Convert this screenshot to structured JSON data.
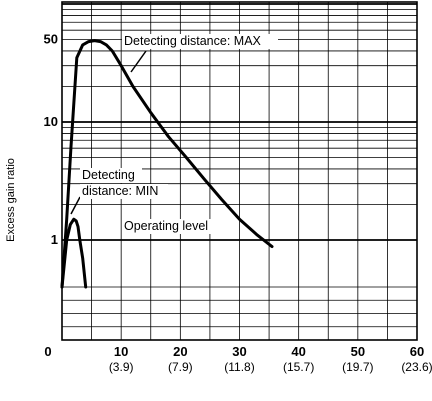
{
  "chart_data": {
    "type": "line",
    "title": "",
    "xlabel": "",
    "ylabel": "Excess gain ratio",
    "x_ticks": [
      {
        "value": 0,
        "label": "0",
        "sub": ""
      },
      {
        "value": 10,
        "label": "10",
        "sub": "(3.9)"
      },
      {
        "value": 20,
        "label": "20",
        "sub": "(7.9)"
      },
      {
        "value": 30,
        "label": "30",
        "sub": "(11.8)"
      },
      {
        "value": 40,
        "label": "40",
        "sub": "(15.7)"
      },
      {
        "value": 50,
        "label": "50",
        "sub": "(19.7)"
      },
      {
        "value": 60,
        "label": "60",
        "sub": "(23.6)"
      }
    ],
    "y_ticks": [
      {
        "value": 1,
        "label": "1"
      },
      {
        "value": 10,
        "label": "10"
      },
      {
        "value": 50,
        "label": "50"
      }
    ],
    "y_bottom_label": "0",
    "xlim": [
      0,
      60
    ],
    "ylim": [
      0.5,
      100
    ],
    "y_scale": "log",
    "grid": true,
    "series": [
      {
        "name": "Detecting distance: MAX",
        "x": [
          0,
          0.8,
          1.5,
          2.5,
          3.5,
          4.5,
          5.5,
          6.5,
          7.5,
          8.5,
          10,
          12,
          15,
          18,
          21,
          24,
          27,
          30,
          33,
          35.5
        ],
        "y": [
          0.5,
          1.5,
          6,
          35,
          45,
          48,
          49,
          48,
          45,
          40,
          30,
          20,
          12,
          7.5,
          5,
          3.3,
          2.2,
          1.5,
          1.1,
          0.88
        ]
      },
      {
        "name": "Detecting distance: MIN",
        "x": [
          0,
          0.8,
          1.4,
          2,
          2.4,
          2.7,
          3,
          3.5,
          4
        ],
        "y": [
          0.5,
          1.0,
          1.35,
          1.5,
          1.45,
          1.3,
          1.0,
          0.7,
          0.5
        ]
      }
    ],
    "annotations": [
      {
        "text": "Detecting distance: MAX",
        "target_series": 0
      },
      {
        "text": "Detecting",
        "target_series": 1
      },
      {
        "text": "distance: MIN",
        "target_series": 1
      },
      {
        "text": "Operating level",
        "y": 1
      }
    ]
  }
}
